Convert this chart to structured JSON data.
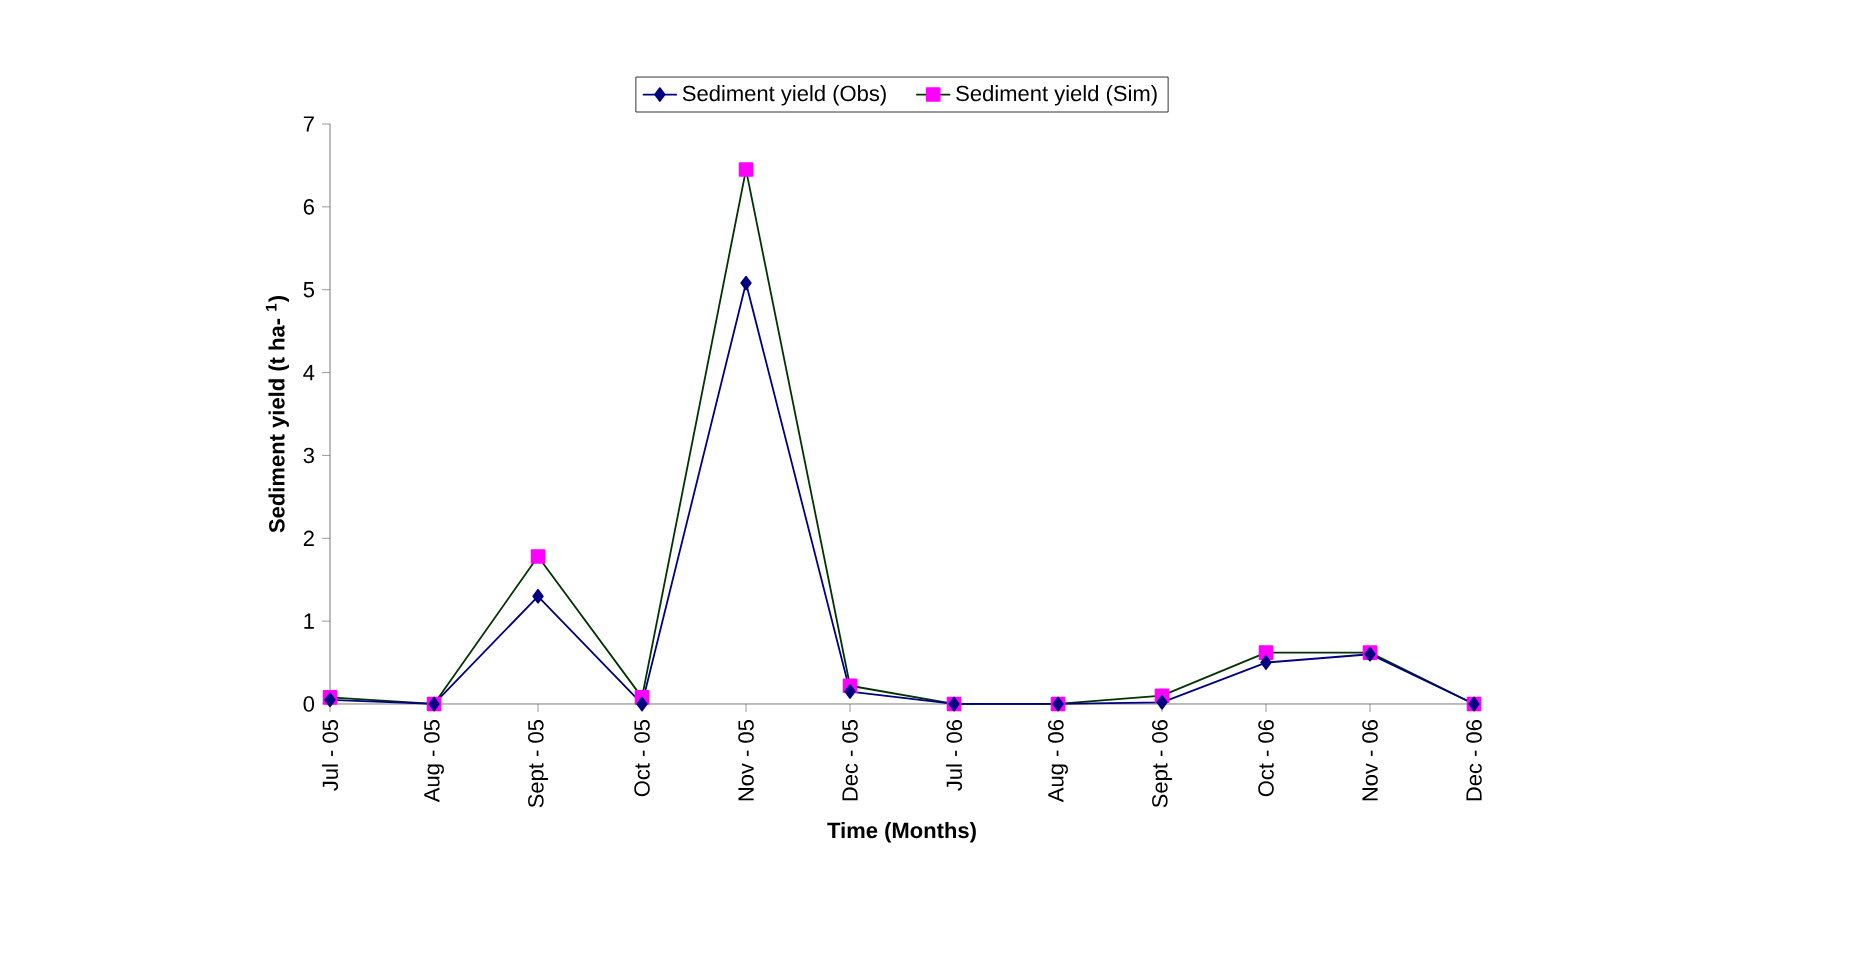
{
  "chart_data": {
    "type": "line",
    "xlabel": "Time (Months)",
    "ylabel": "Sediment yield (t ha- $^{1}$)",
    "categories": [
      "Jul - 05",
      "Aug - 05",
      "Sept - 05",
      "Oct - 05",
      "Nov - 05",
      "Dec - 05",
      "Jul - 06",
      "Aug - 06",
      "Sept - 06",
      "Oct - 06",
      "Nov - 06",
      "Dec - 06"
    ],
    "series": [
      {
        "name": "Sediment yield (Obs)",
        "color": "#000080",
        "marker": "diamond",
        "values": [
          0.05,
          0,
          1.3,
          0,
          5.08,
          0.15,
          0,
          0,
          0.02,
          0.5,
          0.6,
          0
        ]
      },
      {
        "name": "Sediment yield (Sim)",
        "color": "#003300",
        "marker": "square",
        "colors": [
          "#ff00ff",
          "#ff00ff",
          "#ff00ff",
          "#ff00ff",
          "#ff00ff",
          "#ff00ff",
          "#ff00ff",
          "#ff00ff",
          "#ff00ff",
          "#ff00ff",
          "#ff00ff",
          "#ff00ff"
        ],
        "values": [
          0.08,
          0,
          1.78,
          0.08,
          6.45,
          0.22,
          0,
          0,
          0.1,
          0.62,
          0.62,
          0
        ]
      }
    ],
    "ylim": [
      0,
      7
    ],
    "yticks": [
      0,
      1,
      2,
      3,
      4,
      5,
      6,
      7
    ],
    "grid": false,
    "legend": "top"
  }
}
